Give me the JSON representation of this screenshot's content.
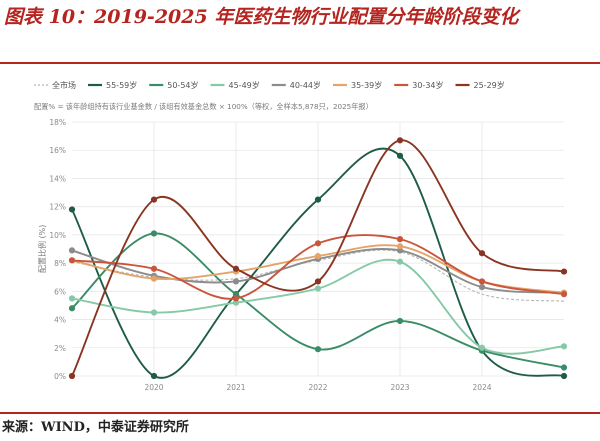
{
  "figure": {
    "title": "图表 10：2019-2025 年医药生物行业配置分年龄阶段变化",
    "source": "来源：WIND，中泰证券研究所"
  },
  "colors": {
    "accent": "#b5241f",
    "grid": "#e6e6e6"
  },
  "chart_data": {
    "type": "line",
    "subtitle": "配置% = 该年龄组持有该行业基金数 / 该组有效基金总数 × 100%（等权，全样本5,878只，2025年报）",
    "ylabel": "配置比例 (%)",
    "xlabel": "",
    "x": [
      2019,
      2020,
      2021,
      2022,
      2023,
      2024,
      2025
    ],
    "x_ticks": [
      "2020",
      "2021",
      "2022",
      "2023",
      "2024"
    ],
    "y_ticks": [
      "0%",
      "2%",
      "4%",
      "6%",
      "8%",
      "10%",
      "12%",
      "14%",
      "16%",
      "18%"
    ],
    "ylim": [
      0,
      18
    ],
    "grid": true,
    "legend_position": "top-left",
    "series": [
      {
        "name": "全市场",
        "color": "#b5b5b5",
        "dashed": true,
        "marker": false,
        "values": [
          8.1,
          7.0,
          6.9,
          8.2,
          8.8,
          5.8,
          5.3
        ]
      },
      {
        "name": "55-59岁",
        "color": "#1f5c45",
        "dashed": false,
        "marker": true,
        "values": [
          11.8,
          0.0,
          5.8,
          12.5,
          15.6,
          1.8,
          0.0
        ]
      },
      {
        "name": "50-54岁",
        "color": "#3a8c66",
        "dashed": false,
        "marker": true,
        "values": [
          4.8,
          10.1,
          5.8,
          1.9,
          3.9,
          1.8,
          0.6
        ]
      },
      {
        "name": "45-49岁",
        "color": "#86c9a6",
        "dashed": false,
        "marker": true,
        "values": [
          5.5,
          4.5,
          5.2,
          6.2,
          8.1,
          2.0,
          2.1
        ]
      },
      {
        "name": "40-44岁",
        "color": "#8c8c8c",
        "dashed": false,
        "marker": true,
        "values": [
          8.9,
          7.1,
          6.7,
          8.3,
          8.9,
          6.3,
          5.9
        ]
      },
      {
        "name": "35-39岁",
        "color": "#e3a46b",
        "dashed": false,
        "marker": true,
        "values": [
          8.2,
          6.9,
          7.4,
          8.5,
          9.2,
          6.7,
          5.9
        ]
      },
      {
        "name": "30-34岁",
        "color": "#c9563c",
        "dashed": false,
        "marker": true,
        "values": [
          8.2,
          7.6,
          5.5,
          9.4,
          9.7,
          6.7,
          5.8
        ]
      },
      {
        "name": "25-29岁",
        "color": "#8a3522",
        "dashed": false,
        "marker": true,
        "values": [
          0.0,
          12.5,
          7.6,
          6.7,
          16.7,
          8.7,
          7.4
        ]
      }
    ]
  }
}
